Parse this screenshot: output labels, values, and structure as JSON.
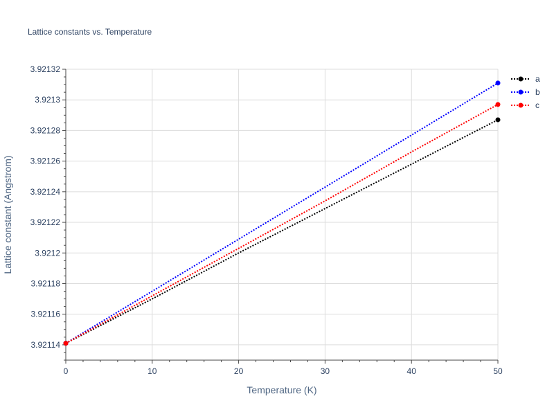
{
  "chart_data": {
    "type": "line",
    "title": "Lattice constants vs. Temperature",
    "xlabel": "Temperature (K)",
    "ylabel": "Lattice constant (Angstrom)",
    "xlim": [
      0,
      50
    ],
    "ylim": [
      3.92113,
      3.92132
    ],
    "x_ticks": [
      0,
      10,
      20,
      30,
      40,
      50
    ],
    "y_ticks": [
      3.92114,
      3.92116,
      3.92118,
      3.9212,
      3.92122,
      3.92124,
      3.92126,
      3.92128,
      3.9213,
      3.92132
    ],
    "x_tick_labels": [
      "0",
      "10",
      "20",
      "30",
      "40",
      "50"
    ],
    "y_tick_labels": [
      "3.92114",
      "3.92116",
      "3.92118",
      "3.9212",
      "3.92122",
      "3.92124",
      "3.92126",
      "3.92128",
      "3.9213",
      "3.92132"
    ],
    "grid": true,
    "legend_position": "right",
    "line_style": "dotted",
    "series": [
      {
        "name": "a",
        "color": "#000000",
        "x": [
          0,
          10,
          20,
          30,
          40,
          50
        ],
        "y": [
          3.921141,
          3.92117,
          3.9212,
          3.921229,
          3.921258,
          3.921287
        ],
        "markers": [
          0,
          50
        ]
      },
      {
        "name": "b",
        "color": "#0000ff",
        "x": [
          0,
          10,
          20,
          30,
          40,
          50
        ],
        "y": [
          3.921141,
          3.921175,
          3.921209,
          3.921243,
          3.921277,
          3.921311
        ],
        "markers": [
          0,
          50
        ]
      },
      {
        "name": "c",
        "color": "#ff0000",
        "x": [
          0,
          10,
          20,
          30,
          40,
          50
        ],
        "y": [
          3.921141,
          3.921172,
          3.921203,
          3.921234,
          3.921266,
          3.921297
        ],
        "markers": [
          0,
          50
        ]
      }
    ]
  }
}
